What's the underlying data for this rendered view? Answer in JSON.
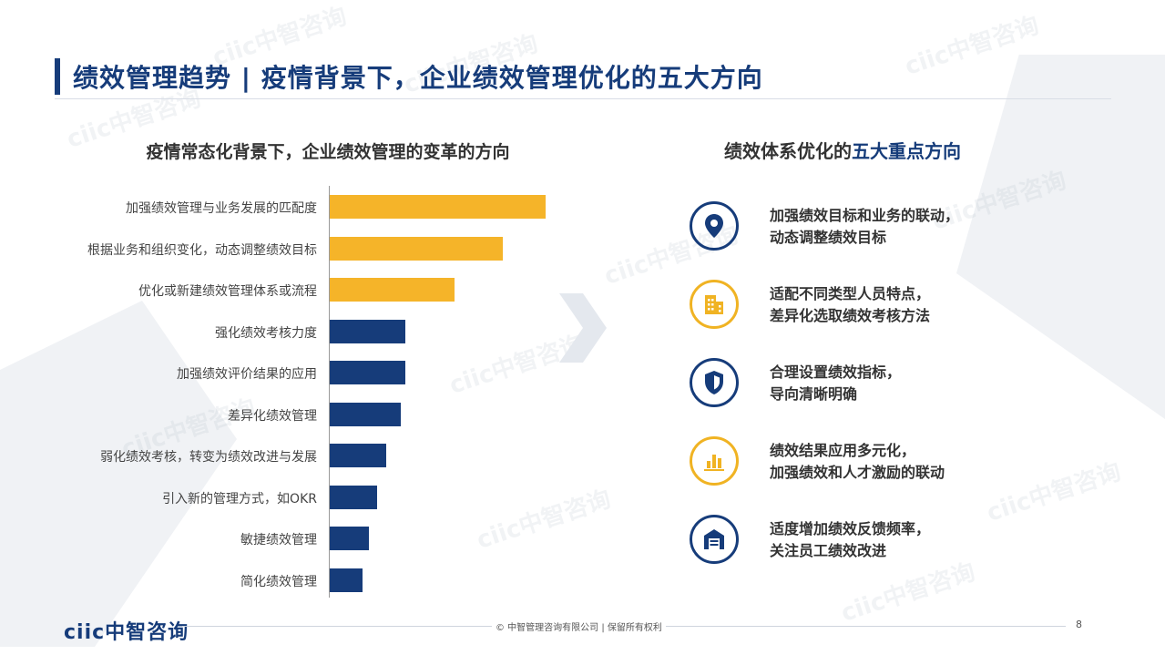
{
  "title": "绩效管理趋势 | 疫情背景下，企业绩效管理优化的五大方向",
  "watermark": "ciic中智咨询",
  "left_heading": "疫情常态化背景下，企业绩效管理的变革的方向",
  "right_heading": {
    "prefix": "绩效体系优化的",
    "highlight": "五大重点方向"
  },
  "chart_data": {
    "type": "bar",
    "orientation": "horizontal",
    "categories": [
      "加强绩效管理与业务发展的匹配度",
      "根据业务和组织变化，动态调整绩效目标",
      "优化或新建绩效管理体系或流程",
      "强化绩效考核力度",
      "加强绩效评价结果的应用",
      "差异化绩效管理",
      "弱化绩效考核，转变为绩效改进与发展",
      "引入新的管理方式，如OKR",
      "敏捷绩效管理",
      "简化绩效管理"
    ],
    "values": [
      100,
      80,
      58,
      35,
      35,
      33,
      26,
      22,
      18,
      15
    ],
    "colors": [
      "#f5b429",
      "#f5b429",
      "#f5b429",
      "#163c7a",
      "#163c7a",
      "#163c7a",
      "#163c7a",
      "#163c7a",
      "#163c7a",
      "#163c7a"
    ],
    "xlim": [
      0,
      100
    ]
  },
  "directions": [
    {
      "icon": "location-pin-icon",
      "line1": "加强绩效目标和业务的联动，",
      "line2": "动态调整绩效目标"
    },
    {
      "icon": "building-icon",
      "line1": "适配不同类型人员特点，",
      "line2": "差异化选取绩效考核方法"
    },
    {
      "icon": "shield-icon",
      "line1": "合理设置绩效指标，",
      "line2": "导向清晰明确"
    },
    {
      "icon": "bar-chart-icon",
      "line1": "绩效结果应用多元化，",
      "line2": "加强绩效和人才激励的联动"
    },
    {
      "icon": "warehouse-icon",
      "line1": "适度增加绩效反馈频率，",
      "line2": "关注员工绩效改进"
    }
  ],
  "footer": {
    "logo": "ciic中智咨询",
    "copyright": "© 中智管理咨询有限公司 | 保留所有权利",
    "page_number": "8"
  }
}
